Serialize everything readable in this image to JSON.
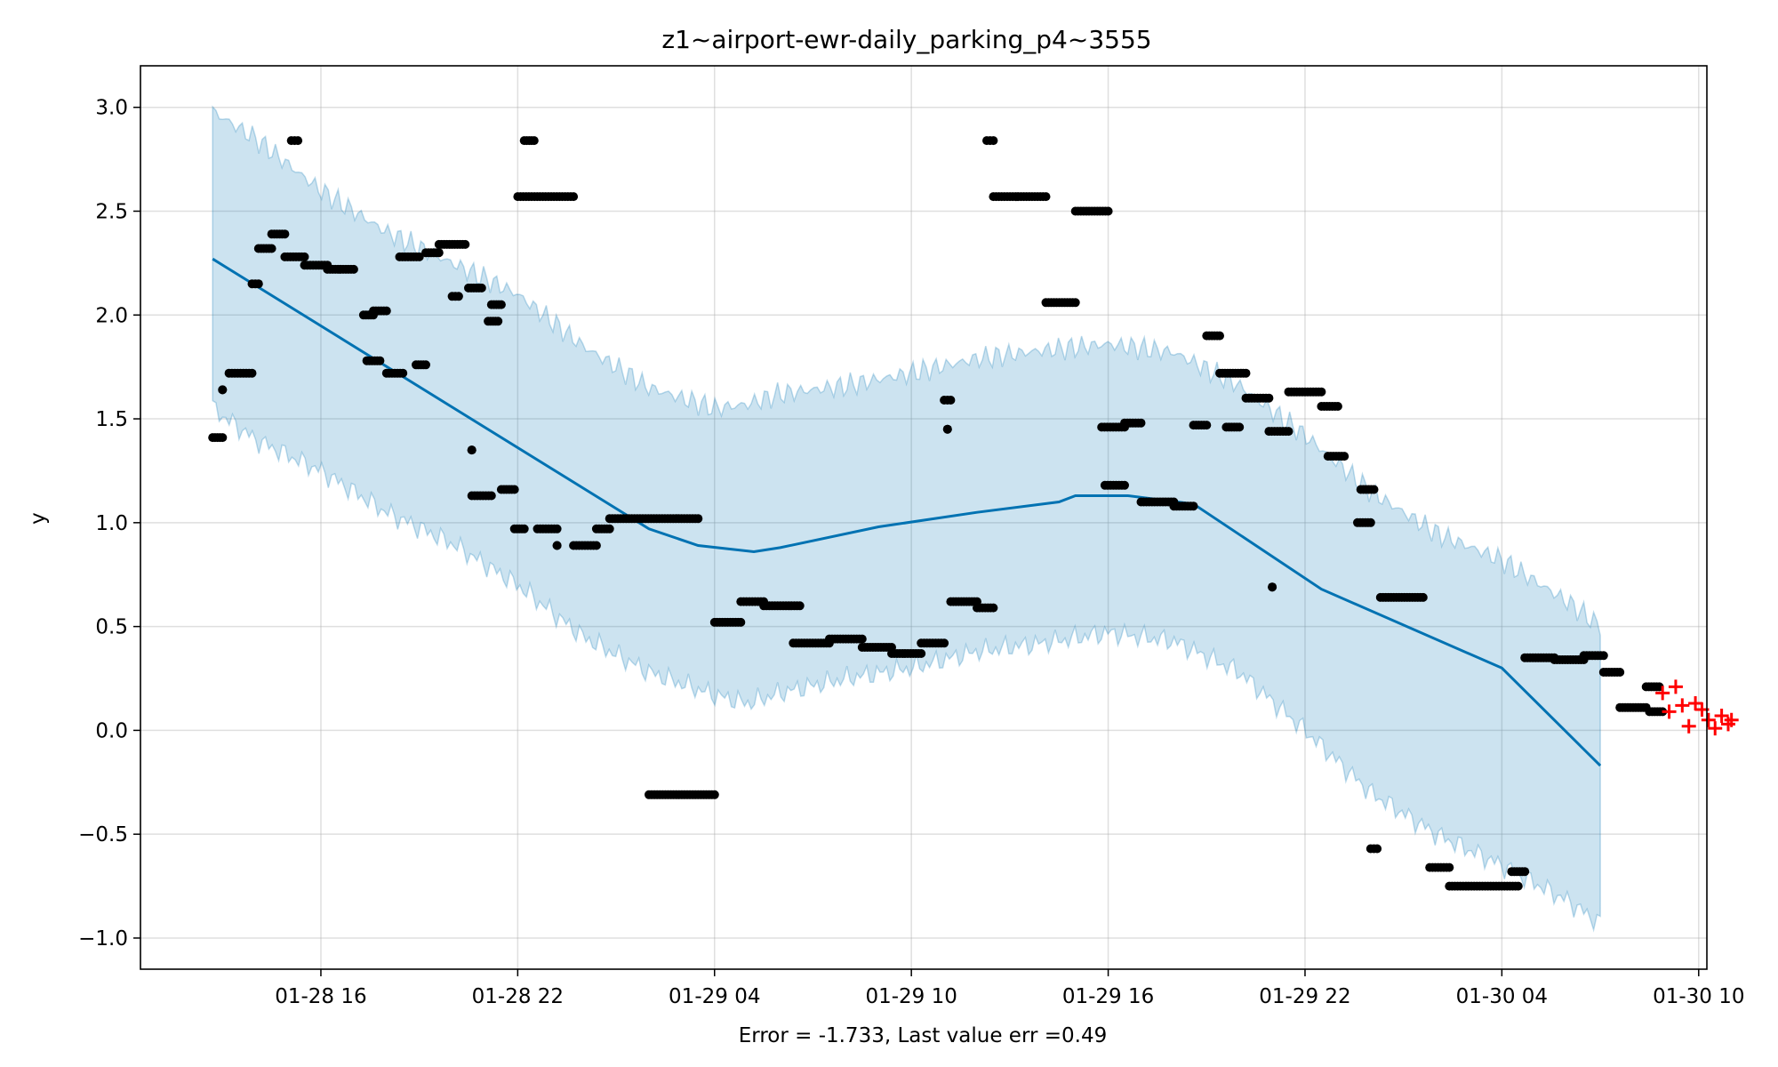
{
  "chart_data": {
    "type": "scatter",
    "title": "z1~airport-ewr-daily_parking_p4~3555",
    "xlabel": "Error = -1.733, Last value err =0.49",
    "ylabel": "y",
    "xlim": [
      "01-28 10:30",
      "01-30 10:15"
    ],
    "ylim": [
      -1.15,
      3.2
    ],
    "grid": true,
    "x_tick_labels": [
      "01-28 16",
      "01-28 22",
      "01-29 04",
      "01-29 10",
      "01-29 16",
      "01-29 22",
      "01-30 04",
      "01-30 10"
    ],
    "x_tick_hours": [
      16,
      22,
      28,
      34,
      40,
      46,
      52,
      58
    ],
    "y_ticks": [
      -1.0,
      -0.5,
      0.0,
      0.5,
      1.0,
      1.5,
      2.0,
      2.5,
      3.0
    ],
    "y_tick_labels": [
      "−1.0",
      "−0.5",
      "0.0",
      "0.5",
      "1.0",
      "1.5",
      "2.0",
      "2.5",
      "3.0"
    ],
    "colors": {
      "trend": "#0072B2",
      "band": "#0072B2",
      "points": "#000000",
      "future": "#FF0000"
    },
    "trend": {
      "x": [
        12.7,
        26.0,
        27.5,
        29.2,
        30.0,
        33.0,
        36.0,
        38.5,
        39.0,
        40.6,
        42.6,
        46.5,
        52.0,
        55.0
      ],
      "y": [
        2.27,
        0.97,
        0.89,
        0.86,
        0.88,
        0.98,
        1.05,
        1.1,
        1.13,
        1.13,
        1.09,
        0.68,
        0.3,
        -0.17
      ]
    },
    "band_upper": {
      "x": [
        12.7,
        14.0,
        16.0,
        18.0,
        20.0,
        22.0,
        24.0,
        26.0,
        28.0,
        29.0,
        30.0,
        32.0,
        34.0,
        36.0,
        38.0,
        40.0,
        42.0,
        44.0,
        46.0,
        48.0,
        50.0,
        52.0,
        54.0,
        55.0
      ],
      "y": [
        2.98,
        2.85,
        2.6,
        2.4,
        2.25,
        2.1,
        1.85,
        1.65,
        1.55,
        1.57,
        1.62,
        1.66,
        1.72,
        1.79,
        1.83,
        1.86,
        1.82,
        1.66,
        1.42,
        1.15,
        0.95,
        0.82,
        0.62,
        0.5
      ]
    },
    "band_lower": {
      "x": [
        12.7,
        14.0,
        16.0,
        18.0,
        20.0,
        22.0,
        24.0,
        26.0,
        28.0,
        29.0,
        30.0,
        32.0,
        34.0,
        36.0,
        38.0,
        40.0,
        42.0,
        44.0,
        46.0,
        48.0,
        50.0,
        52.0,
        54.0,
        55.0
      ],
      "y": [
        1.55,
        1.4,
        1.25,
        1.05,
        0.9,
        0.7,
        0.45,
        0.28,
        0.17,
        0.13,
        0.18,
        0.25,
        0.3,
        0.38,
        0.42,
        0.47,
        0.43,
        0.28,
        0.0,
        -0.3,
        -0.5,
        -0.65,
        -0.82,
        -0.93
      ]
    },
    "point_runs": [
      {
        "x0": 12.7,
        "x1": 13.0,
        "y": 1.41
      },
      {
        "x0": 13.0,
        "x1": 13.0,
        "y": 1.64
      },
      {
        "x0": 13.2,
        "x1": 13.9,
        "y": 1.72
      },
      {
        "x0": 13.9,
        "x1": 14.1,
        "y": 2.15
      },
      {
        "x0": 14.1,
        "x1": 14.5,
        "y": 2.32
      },
      {
        "x0": 14.5,
        "x1": 14.9,
        "y": 2.39
      },
      {
        "x0": 14.9,
        "x1": 15.5,
        "y": 2.28
      },
      {
        "x0": 15.1,
        "x1": 15.3,
        "y": 2.84
      },
      {
        "x0": 15.5,
        "x1": 16.2,
        "y": 2.24
      },
      {
        "x0": 16.2,
        "x1": 17.0,
        "y": 2.22
      },
      {
        "x0": 17.3,
        "x1": 17.6,
        "y": 2.0
      },
      {
        "x0": 17.6,
        "x1": 18.0,
        "y": 2.02
      },
      {
        "x0": 17.4,
        "x1": 17.8,
        "y": 1.78
      },
      {
        "x0": 18.0,
        "x1": 18.5,
        "y": 1.72
      },
      {
        "x0": 18.4,
        "x1": 19.0,
        "y": 2.28
      },
      {
        "x0": 18.9,
        "x1": 19.2,
        "y": 1.76
      },
      {
        "x0": 19.2,
        "x1": 19.6,
        "y": 2.3
      },
      {
        "x0": 19.6,
        "x1": 20.4,
        "y": 2.34
      },
      {
        "x0": 20.0,
        "x1": 20.2,
        "y": 2.09
      },
      {
        "x0": 20.5,
        "x1": 20.9,
        "y": 2.13
      },
      {
        "x0": 20.6,
        "x1": 21.2,
        "y": 1.13
      },
      {
        "x0": 20.6,
        "x1": 20.6,
        "y": 1.35
      },
      {
        "x0": 21.2,
        "x1": 21.5,
        "y": 2.05
      },
      {
        "x0": 21.1,
        "x1": 21.4,
        "y": 1.97
      },
      {
        "x0": 21.5,
        "x1": 21.9,
        "y": 1.16
      },
      {
        "x0": 21.9,
        "x1": 22.2,
        "y": 0.97
      },
      {
        "x0": 22.2,
        "x1": 22.5,
        "y": 2.84
      },
      {
        "x0": 22.6,
        "x1": 23.2,
        "y": 0.97
      },
      {
        "x0": 23.2,
        "x1": 23.2,
        "y": 0.89
      },
      {
        "x0": 22.0,
        "x1": 23.7,
        "y": 2.57
      },
      {
        "x0": 23.7,
        "x1": 24.4,
        "y": 0.89
      },
      {
        "x0": 24.4,
        "x1": 24.8,
        "y": 0.97
      },
      {
        "x0": 24.8,
        "x1": 27.5,
        "y": 1.02
      },
      {
        "x0": 26.0,
        "x1": 28.0,
        "y": -0.31
      },
      {
        "x0": 28.0,
        "x1": 28.8,
        "y": 0.52
      },
      {
        "x0": 28.8,
        "x1": 29.5,
        "y": 0.62
      },
      {
        "x0": 29.5,
        "x1": 30.6,
        "y": 0.6
      },
      {
        "x0": 30.4,
        "x1": 31.5,
        "y": 0.42
      },
      {
        "x0": 31.5,
        "x1": 32.5,
        "y": 0.44
      },
      {
        "x0": 32.5,
        "x1": 33.4,
        "y": 0.4
      },
      {
        "x0": 33.4,
        "x1": 34.3,
        "y": 0.37
      },
      {
        "x0": 34.3,
        "x1": 35.0,
        "y": 0.42
      },
      {
        "x0": 35.0,
        "x1": 35.2,
        "y": 1.59
      },
      {
        "x0": 35.1,
        "x1": 35.1,
        "y": 1.45
      },
      {
        "x0": 35.2,
        "x1": 36.0,
        "y": 0.62
      },
      {
        "x0": 36.0,
        "x1": 36.5,
        "y": 0.59
      },
      {
        "x0": 36.3,
        "x1": 36.5,
        "y": 2.84
      },
      {
        "x0": 36.5,
        "x1": 38.1,
        "y": 2.57
      },
      {
        "x0": 38.1,
        "x1": 39.0,
        "y": 2.06
      },
      {
        "x0": 39.0,
        "x1": 40.0,
        "y": 2.5
      },
      {
        "x0": 39.8,
        "x1": 40.5,
        "y": 1.46
      },
      {
        "x0": 39.9,
        "x1": 40.5,
        "y": 1.18
      },
      {
        "x0": 40.5,
        "x1": 41.0,
        "y": 1.48
      },
      {
        "x0": 41.0,
        "x1": 42.0,
        "y": 1.1
      },
      {
        "x0": 42.0,
        "x1": 42.6,
        "y": 1.08
      },
      {
        "x0": 42.6,
        "x1": 43.0,
        "y": 1.47
      },
      {
        "x0": 43.0,
        "x1": 43.4,
        "y": 1.9
      },
      {
        "x0": 43.4,
        "x1": 44.2,
        "y": 1.72
      },
      {
        "x0": 43.6,
        "x1": 44.0,
        "y": 1.46
      },
      {
        "x0": 44.2,
        "x1": 44.9,
        "y": 1.6
      },
      {
        "x0": 44.9,
        "x1": 45.5,
        "y": 1.44
      },
      {
        "x0": 45.0,
        "x1": 45.0,
        "y": 0.69
      },
      {
        "x0": 45.5,
        "x1": 46.5,
        "y": 1.63
      },
      {
        "x0": 46.5,
        "x1": 47.0,
        "y": 1.56
      },
      {
        "x0": 46.7,
        "x1": 47.2,
        "y": 1.32
      },
      {
        "x0": 47.6,
        "x1": 48.0,
        "y": 1.0
      },
      {
        "x0": 47.7,
        "x1": 48.1,
        "y": 1.16
      },
      {
        "x0": 48.0,
        "x1": 48.2,
        "y": -0.57
      },
      {
        "x0": 48.3,
        "x1": 49.6,
        "y": 0.64
      },
      {
        "x0": 49.8,
        "x1": 50.4,
        "y": -0.66
      },
      {
        "x0": 50.4,
        "x1": 52.5,
        "y": -0.75
      },
      {
        "x0": 52.3,
        "x1": 52.7,
        "y": -0.68
      },
      {
        "x0": 52.7,
        "x1": 53.6,
        "y": 0.35
      },
      {
        "x0": 53.6,
        "x1": 54.5,
        "y": 0.34
      },
      {
        "x0": 54.5,
        "x1": 55.1,
        "y": 0.36
      },
      {
        "x0": 55.1,
        "x1": 55.6,
        "y": 0.28
      },
      {
        "x0": 55.6,
        "x1": 56.4,
        "y": 0.11
      },
      {
        "x0": 56.4,
        "x1": 56.8,
        "y": 0.21
      },
      {
        "x0": 56.5,
        "x1": 56.9,
        "y": 0.09
      }
    ],
    "future_points": {
      "x": [
        56.9,
        57.1,
        57.3,
        57.5,
        57.7,
        57.9,
        58.1,
        58.3,
        58.5,
        58.7,
        58.9,
        59.0
      ],
      "y": [
        0.18,
        0.09,
        0.21,
        0.12,
        0.02,
        0.13,
        0.1,
        0.05,
        0.01,
        0.07,
        0.03,
        0.05
      ]
    }
  }
}
